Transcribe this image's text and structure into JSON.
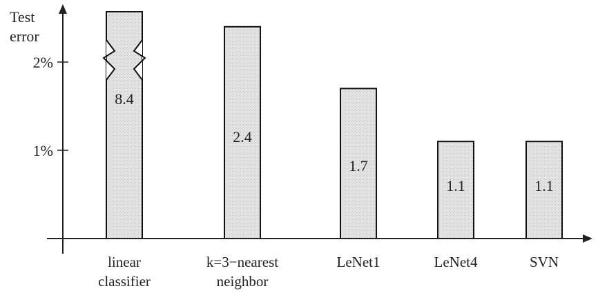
{
  "chart_data": {
    "type": "bar",
    "ylabel": [
      "Test",
      "error"
    ],
    "yticks": [
      {
        "value": 1,
        "label": "1%"
      },
      {
        "value": 2,
        "label": "2%"
      }
    ],
    "ylim": [
      0,
      2.6
    ],
    "categories": [
      [
        "linear",
        "classifier"
      ],
      [
        "k=3−nearest",
        "neighbor"
      ],
      [
        "LeNet1"
      ],
      [
        "LeNet4"
      ],
      [
        "SVN"
      ]
    ],
    "values": [
      8.4,
      2.4,
      1.7,
      1.1,
      1.1
    ],
    "data_labels": [
      "8.4",
      "2.4",
      "1.7",
      "1.1",
      "1.1"
    ],
    "broken_bar_index": 0,
    "grid": false
  }
}
